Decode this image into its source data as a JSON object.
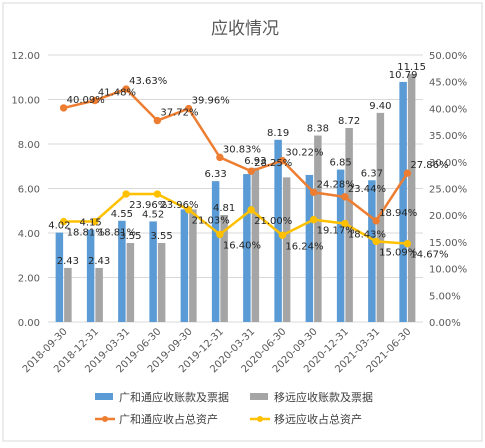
{
  "chart_data": {
    "type": "bar",
    "title": "应收情况",
    "categories": [
      "2018-09-30",
      "2018-12-31",
      "2019-03-31",
      "2019-06-30",
      "2019-09-30",
      "2019-12-31",
      "2020-03-31",
      "2020-06-30",
      "2020-09-30",
      "2020-12-31",
      "2021-03-31",
      "2021-06-30"
    ],
    "series": [
      {
        "name": "广和通应收账款及票据",
        "type": "bar",
        "axis": "left",
        "color": "#5b9bd5",
        "values": [
          4.02,
          4.15,
          4.55,
          4.52,
          5.06,
          6.33,
          6.65,
          8.19,
          6.61,
          6.85,
          6.37,
          10.79
        ],
        "labels": [
          "4.02",
          "4.15",
          "4.55",
          "4.52",
          "",
          "6.33",
          "",
          "8.19",
          "",
          "6.85",
          "6.37",
          "10.79"
        ]
      },
      {
        "name": "移远应收账款及票据",
        "type": "bar",
        "axis": "left",
        "color": "#a5a5a5",
        "values": [
          2.43,
          2.43,
          3.55,
          3.55,
          5.06,
          4.81,
          6.93,
          6.5,
          8.38,
          8.72,
          9.4,
          11.15
        ],
        "labels": [
          "2.43",
          "2.43",
          "3.55",
          "3.55",
          "",
          "4.81",
          "6.93",
          "",
          "8.38",
          "8.72",
          "9.40",
          "11.15"
        ]
      },
      {
        "name": "广和通应收占总资产",
        "type": "line",
        "axis": "right",
        "color": "#ed7d31",
        "values": [
          40.09,
          41.48,
          43.63,
          37.72,
          39.96,
          30.83,
          28.25,
          30.22,
          24.28,
          23.44,
          18.94,
          27.86
        ],
        "labels": [
          "40.09%",
          "41.48%",
          "43.63%",
          "37.72%",
          "39.96%",
          "30.83%",
          "28.25%",
          "30.22%",
          "24.28%",
          "23.44%",
          "18.94%",
          "27.86%"
        ]
      },
      {
        "name": "移远应收占总资产",
        "type": "line",
        "axis": "right",
        "color": "#ffc000",
        "values": [
          18.81,
          18.81,
          23.96,
          23.96,
          21.03,
          16.4,
          21.0,
          16.24,
          19.17,
          18.43,
          15.09,
          14.67
        ],
        "labels": [
          "18.81%",
          "18.81%",
          "23.96%",
          "23.96%",
          "21.03%",
          "16.40%",
          "21.00%",
          "16.24%",
          "19.17%",
          "18.43%",
          "15.09%",
          "14.67%"
        ]
      }
    ],
    "left_axis": {
      "min": 0,
      "max": 12,
      "step": 2,
      "tick_labels": [
        "0.00",
        "2.00",
        "4.00",
        "6.00",
        "8.00",
        "10.00",
        "12.00"
      ]
    },
    "right_axis": {
      "min": 0,
      "max": 50,
      "step": 5,
      "tick_labels": [
        "0.00%",
        "5.00%",
        "10.00%",
        "15.00%",
        "20.00%",
        "25.00%",
        "30.00%",
        "35.00%",
        "40.00%",
        "45.00%",
        "50.00%"
      ]
    },
    "grid": true,
    "legend_position": "bottom"
  }
}
